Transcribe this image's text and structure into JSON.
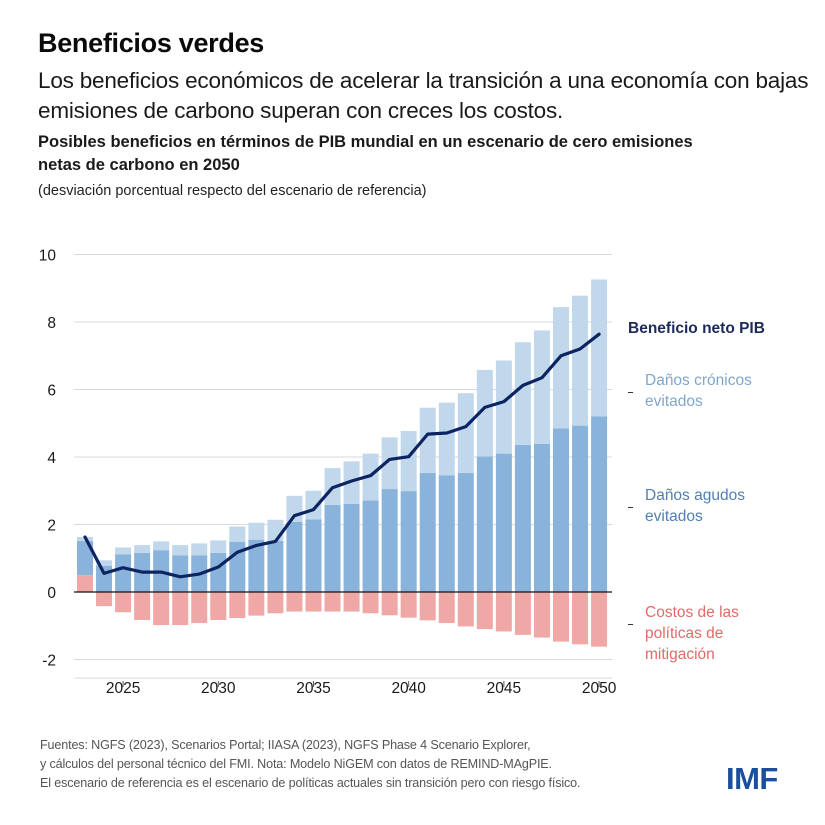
{
  "header": {
    "title": "Beneficios verdes",
    "subtitle": "Los beneficios económicos de acelerar la transición a una economía con bajas emisiones de carbono superan con creces los costos."
  },
  "chart_data": {
    "type": "bar",
    "stacked": true,
    "title": "Posibles beneficios en términos de PIB mundial en un escenario de cero emisiones netas de carbono en 2050",
    "units": "(desviación porcentual respecto del escenario de referencia)",
    "xlabel": "",
    "ylabel": "",
    "ylim": [
      -2,
      10
    ],
    "yticks": [
      -2,
      0,
      2,
      4,
      6,
      8,
      10
    ],
    "ytick_labels": [
      "-2",
      "0",
      "2",
      "4",
      "6",
      "8",
      "10"
    ],
    "xticks": [
      2025,
      2030,
      2035,
      2040,
      2045,
      2050
    ],
    "xtick_labels": [
      "2025",
      "2030",
      "2035",
      "2040",
      "2045",
      "2050"
    ],
    "grid": true,
    "legend_placement": "right",
    "categories": [
      2023,
      2024,
      2025,
      2026,
      2027,
      2028,
      2029,
      2030,
      2031,
      2032,
      2033,
      2034,
      2035,
      2036,
      2037,
      2038,
      2039,
      2040,
      2041,
      2042,
      2043,
      2044,
      2045,
      2046,
      2047,
      2048,
      2049,
      2050
    ],
    "series": [
      {
        "name": "Costos de las políticas de mitigación",
        "type": "bar",
        "color": "#f0a8a6",
        "values": [
          0.5,
          -0.42,
          -0.6,
          -0.83,
          -0.98,
          -0.98,
          -0.92,
          -0.83,
          -0.77,
          -0.7,
          -0.63,
          -0.58,
          -0.58,
          -0.58,
          -0.58,
          -0.63,
          -0.69,
          -0.76,
          -0.84,
          -0.92,
          -1.02,
          -1.1,
          -1.17,
          -1.27,
          -1.35,
          -1.47,
          -1.55,
          -1.62
        ]
      },
      {
        "name": "Daños agudos evitados",
        "type": "bar",
        "color": "#8ab3db",
        "values": [
          1.01,
          0.78,
          1.12,
          1.16,
          1.24,
          1.09,
          1.09,
          1.16,
          1.49,
          1.55,
          1.52,
          2.08,
          2.15,
          2.58,
          2.61,
          2.71,
          3.05,
          2.99,
          3.53,
          3.46,
          3.53,
          4.02,
          4.1,
          4.36,
          4.39,
          4.85,
          4.93,
          5.2
        ]
      },
      {
        "name": "Daños crónicos evitados",
        "type": "bar",
        "color": "#c0d7ec",
        "values": [
          0.12,
          0.16,
          0.2,
          0.23,
          0.26,
          0.3,
          0.35,
          0.37,
          0.45,
          0.5,
          0.62,
          0.77,
          0.85,
          1.09,
          1.26,
          1.39,
          1.53,
          1.78,
          1.93,
          2.15,
          2.36,
          2.56,
          2.76,
          3.04,
          3.36,
          3.59,
          3.85,
          4.06
        ]
      },
      {
        "name": "Beneficio neto PIB",
        "type": "line",
        "color": "#0c2461",
        "values": [
          1.63,
          0.55,
          0.72,
          0.59,
          0.59,
          0.45,
          0.53,
          0.74,
          1.18,
          1.38,
          1.5,
          2.26,
          2.44,
          3.09,
          3.29,
          3.45,
          3.93,
          4.01,
          4.68,
          4.71,
          4.9,
          5.47,
          5.64,
          6.12,
          6.35,
          7.0,
          7.2,
          7.64
        ]
      }
    ]
  },
  "legend": [
    {
      "label_lines": [
        "Beneficio neto PIB"
      ],
      "color": "#1b2a5a",
      "bold": true,
      "dash": false
    },
    {
      "label_lines": [
        "Daños crónicos",
        "evitados"
      ],
      "color": "#7fa6cc",
      "bold": false,
      "dash": true
    },
    {
      "label_lines": [
        "Daños agudos",
        "evitados"
      ],
      "color": "#4f7fb5",
      "bold": false,
      "dash": true
    },
    {
      "label_lines": [
        "Costos de las",
        "políticas de",
        "mitigación"
      ],
      "color": "#e26a68",
      "bold": false,
      "dash": true
    }
  ],
  "footer": {
    "lines": [
      "Fuentes: NGFS (2023), Scenarios Portal; IIASA (2023), NGFS Phase 4 Scenario Explorer,",
      "y cálculos del personal técnico del FMI. Nota: Modelo NiGEM con datos de REMIND-MAgPIE.",
      "El escenario de referencia es el escenario de políticas actuales sin transición pero con riesgo físico."
    ]
  },
  "logo": {
    "text": "IMF"
  }
}
